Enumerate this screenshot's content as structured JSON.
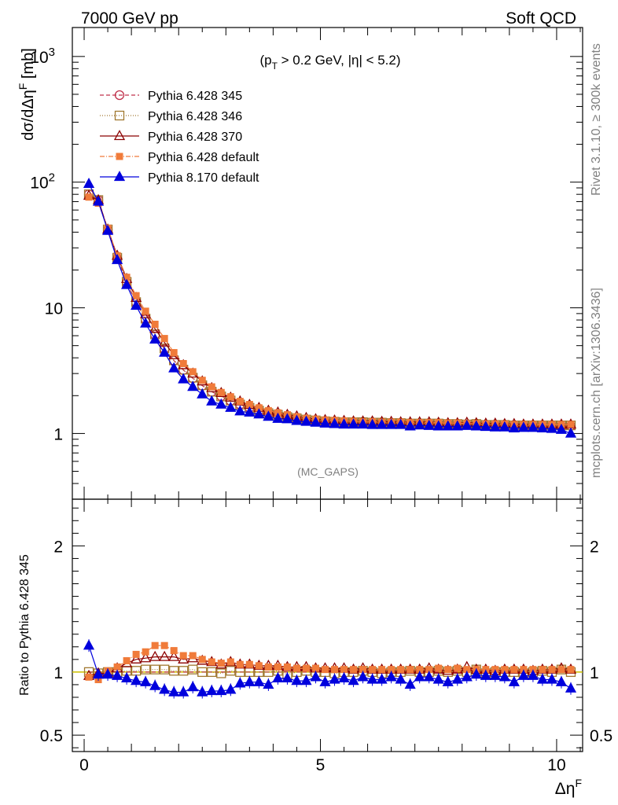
{
  "header": {
    "left": "7000 GeV pp",
    "right": "Soft QCD"
  },
  "side_labels": {
    "rivet": "Rivet 3.1.10, ≥ 300k events",
    "mcplots": "mcplots.cern.ch [arXiv:1306.3436]"
  },
  "chart_data": [
    {
      "type": "line",
      "panel": "main",
      "annotation": "(p_T > 0.2 GeV, |η| < 5.2)",
      "annotation_parts": {
        "open": "(p",
        "sub": "T",
        "rest": " > 0.2 GeV, |η| < 5.2)"
      },
      "watermark": "(MC_GAPS)",
      "ylabel": "dσ/dΔη^F [mb]",
      "ylabel_parts": {
        "base": "dσ/dΔη",
        "sup": "F",
        "tail": " [mb]"
      },
      "y_scale": "log",
      "ylim": [
        0.3,
        1700
      ],
      "xlim": [
        -0.25,
        10.55
      ],
      "y_tick_labels": [
        {
          "value": 1,
          "label": "1"
        },
        {
          "value": 10,
          "label": "10"
        },
        {
          "value": 100,
          "label": "10",
          "sup": "2"
        },
        {
          "value": 1000,
          "label": "10",
          "sup": "3"
        }
      ],
      "legend_position": "top-left",
      "x": [
        0.1,
        0.3,
        0.5,
        0.7,
        0.9,
        1.1,
        1.3,
        1.5,
        1.7,
        1.9,
        2.1,
        2.3,
        2.5,
        2.7,
        2.9,
        3.1,
        3.3,
        3.5,
        3.7,
        3.9,
        4.1,
        4.3,
        4.5,
        4.7,
        4.9,
        5.1,
        5.3,
        5.5,
        5.7,
        5.9,
        6.1,
        6.3,
        6.5,
        6.7,
        6.9,
        7.1,
        7.3,
        7.5,
        7.7,
        7.9,
        8.1,
        8.3,
        8.5,
        8.7,
        8.9,
        9.1,
        9.3,
        9.5,
        9.7,
        9.9,
        10.1,
        10.3
      ],
      "series": [
        {
          "name": "Pythia 6.428 345",
          "color": "#c0304a",
          "marker": "circle-open",
          "dash": "5,3",
          "values": [
            80,
            72,
            42,
            25,
            16,
            11,
            8.1,
            6.1,
            4.7,
            3.8,
            3.2,
            2.75,
            2.4,
            2.15,
            1.98,
            1.82,
            1.7,
            1.6,
            1.52,
            1.45,
            1.4,
            1.35,
            1.32,
            1.28,
            1.26,
            1.25,
            1.24,
            1.23,
            1.23,
            1.22,
            1.22,
            1.22,
            1.21,
            1.21,
            1.2,
            1.2,
            1.2,
            1.19,
            1.19,
            1.18,
            1.18,
            1.18,
            1.17,
            1.17,
            1.17,
            1.16,
            1.16,
            1.16,
            1.16,
            1.16,
            1.15,
            1.15
          ]
        },
        {
          "name": "Pythia 6.428 346",
          "color": "#a07830",
          "marker": "square-open",
          "dash": "1,2",
          "values": [
            80,
            72,
            42,
            25,
            16.1,
            11.1,
            8.2,
            6.15,
            4.75,
            3.82,
            3.22,
            2.78,
            2.42,
            2.15,
            1.97,
            1.83,
            1.7,
            1.6,
            1.52,
            1.45,
            1.41,
            1.35,
            1.32,
            1.29,
            1.27,
            1.25,
            1.24,
            1.23,
            1.23,
            1.23,
            1.22,
            1.22,
            1.21,
            1.21,
            1.2,
            1.2,
            1.2,
            1.2,
            1.19,
            1.19,
            1.18,
            1.19,
            1.17,
            1.17,
            1.17,
            1.16,
            1.16,
            1.16,
            1.16,
            1.16,
            1.16,
            1.16
          ]
        },
        {
          "name": "Pythia 6.428 370",
          "color": "#8b0000",
          "marker": "triangle-open",
          "dash": "",
          "values": [
            78,
            72,
            42,
            26,
            17,
            12,
            8.9,
            6.8,
            5.3,
            4.2,
            3.5,
            3,
            2.6,
            2.3,
            2.1,
            1.93,
            1.8,
            1.69,
            1.6,
            1.52,
            1.47,
            1.41,
            1.37,
            1.33,
            1.3,
            1.28,
            1.27,
            1.26,
            1.25,
            1.25,
            1.25,
            1.24,
            1.24,
            1.23,
            1.23,
            1.23,
            1.23,
            1.22,
            1.21,
            1.21,
            1.22,
            1.21,
            1.2,
            1.2,
            1.19,
            1.19,
            1.18,
            1.18,
            1.18,
            1.18,
            1.18,
            1.18
          ]
        },
        {
          "name": "Pythia 6.428 default",
          "color": "#f07b3a",
          "marker": "square-filled",
          "dash": "6,2,1,2",
          "values": [
            76,
            68,
            43,
            26,
            17.5,
            12.5,
            9.4,
            7.4,
            5.7,
            4.4,
            3.6,
            3.1,
            2.65,
            2.35,
            2.12,
            1.96,
            1.8,
            1.7,
            1.6,
            1.52,
            1.46,
            1.41,
            1.36,
            1.32,
            1.3,
            1.28,
            1.27,
            1.26,
            1.25,
            1.24,
            1.24,
            1.23,
            1.23,
            1.23,
            1.22,
            1.22,
            1.22,
            1.22,
            1.21,
            1.21,
            1.2,
            1.2,
            1.19,
            1.19,
            1.19,
            1.18,
            1.18,
            1.18,
            1.18,
            1.18,
            1.18,
            1.18
          ]
        },
        {
          "name": "Pythia 8.170 default",
          "color": "#0000dd",
          "marker": "triangle-filled",
          "dash": "",
          "values": [
            97,
            70,
            41,
            24,
            15.2,
            10.4,
            7.5,
            5.6,
            4.4,
            3.3,
            2.7,
            2.35,
            2.05,
            1.8,
            1.7,
            1.6,
            1.5,
            1.47,
            1.42,
            1.36,
            1.31,
            1.3,
            1.26,
            1.24,
            1.22,
            1.2,
            1.19,
            1.18,
            1.18,
            1.18,
            1.17,
            1.17,
            1.17,
            1.17,
            1.14,
            1.16,
            1.15,
            1.14,
            1.14,
            1.14,
            1.15,
            1.14,
            1.13,
            1.12,
            1.12,
            1.1,
            1.11,
            1.11,
            1.1,
            1.09,
            1.07,
            1.0
          ]
        }
      ]
    },
    {
      "type": "line",
      "panel": "ratio",
      "ylabel": "Ratio to Pythia 6.428 345",
      "xlabel": "Δη^F",
      "xlabel_parts": {
        "base": "Δη",
        "sup": "F"
      },
      "ylim": [
        0.37,
        2.37
      ],
      "xlim": [
        -0.25,
        10.55
      ],
      "x_tick_labels": [
        {
          "value": 0,
          "label": "0"
        },
        {
          "value": 5,
          "label": "5"
        },
        {
          "value": 10,
          "label": "10"
        }
      ],
      "y_tick_labels": [
        {
          "value": 0.5,
          "label": "0.5"
        },
        {
          "value": 1,
          "label": "1"
        },
        {
          "value": 2,
          "label": "2"
        }
      ],
      "reference_line": 1,
      "x": [
        0.1,
        0.3,
        0.5,
        0.7,
        0.9,
        1.1,
        1.3,
        1.5,
        1.7,
        1.9,
        2.1,
        2.3,
        2.5,
        2.7,
        2.9,
        3.1,
        3.3,
        3.5,
        3.7,
        3.9,
        4.1,
        4.3,
        4.5,
        4.7,
        4.9,
        5.1,
        5.3,
        5.5,
        5.7,
        5.9,
        6.1,
        6.3,
        6.5,
        6.7,
        6.9,
        7.1,
        7.3,
        7.5,
        7.7,
        7.9,
        8.1,
        8.3,
        8.5,
        8.7,
        8.9,
        9.1,
        9.3,
        9.5,
        9.7,
        9.9,
        10.1,
        10.3
      ],
      "series": [
        {
          "name": "Pythia 6.428 345",
          "color": "#c0304a",
          "marker": "circle-open",
          "dash": "5,3",
          "values": [
            1,
            1,
            1,
            1,
            1,
            1,
            1,
            1,
            1,
            1,
            1,
            1,
            1,
            1,
            1,
            1,
            1,
            1,
            1,
            1,
            1,
            1,
            1,
            1,
            1,
            1,
            1,
            1,
            1,
            1,
            1,
            1,
            1,
            1,
            1,
            1,
            1,
            1,
            1,
            1,
            1,
            1,
            1,
            1,
            1,
            1,
            1,
            1,
            1,
            1,
            1,
            1
          ]
        },
        {
          "name": "Pythia 6.428 346",
          "color": "#a07830",
          "marker": "square-open",
          "dash": "1,2",
          "values": [
            1.0,
            0.99,
            1.0,
            1.0,
            1.01,
            1.01,
            1.02,
            1.02,
            1.02,
            1.01,
            1.01,
            1.02,
            1.0,
            1.0,
            0.99,
            1.01,
            1.0,
            1.0,
            1.0,
            1.0,
            1.01,
            0.98,
            1.0,
            1.01,
            1.0,
            1.0,
            0.99,
            1.0,
            1.0,
            1.01,
            1.0,
            0.99,
            1.0,
            1.0,
            1.01,
            1.0,
            1.0,
            1.01,
            1.0,
            1.01,
            1.0,
            1.02,
            0.99,
            1.0,
            1.0,
            1.0,
            0.99,
            1.0,
            1.01,
            1.0,
            1.02,
            1.0
          ]
        },
        {
          "name": "Pythia 6.428 370",
          "color": "#8b0000",
          "marker": "triangle-open",
          "dash": "",
          "values": [
            0.97,
            0.99,
            0.99,
            1.03,
            1.07,
            1.1,
            1.11,
            1.12,
            1.12,
            1.12,
            1.1,
            1.11,
            1.09,
            1.08,
            1.06,
            1.08,
            1.06,
            1.06,
            1.05,
            1.05,
            1.05,
            1.04,
            1.04,
            1.04,
            1.03,
            1.03,
            1.03,
            1.03,
            1.02,
            1.03,
            1.02,
            1.02,
            1.02,
            1.02,
            1.02,
            1.02,
            1.03,
            1.02,
            1.01,
            1.02,
            1.04,
            1.02,
            1.02,
            1.01,
            1.02,
            1.02,
            1.02,
            1.01,
            1.02,
            1.02,
            1.03,
            1.02
          ]
        },
        {
          "name": "Pythia 6.428 default",
          "color": "#f07b3a",
          "marker": "square-filled",
          "dash": "6,2,1,2",
          "values": [
            0.96,
            0.94,
            1.01,
            1.04,
            1.09,
            1.14,
            1.16,
            1.21,
            1.21,
            1.17,
            1.13,
            1.13,
            1.1,
            1.08,
            1.07,
            1.08,
            1.06,
            1.06,
            1.05,
            1.04,
            1.04,
            1.04,
            1.03,
            1.03,
            1.03,
            1.02,
            1.02,
            1.02,
            1.02,
            1.02,
            1.02,
            1.02,
            1.02,
            1.02,
            1.02,
            1.02,
            1.02,
            1.03,
            1.02,
            1.03,
            1.02,
            1.02,
            1.02,
            1.02,
            1.02,
            1.02,
            1.02,
            1.02,
            1.02,
            1.02,
            1.02,
            1.02
          ]
        },
        {
          "name": "Pythia 8.170 default",
          "color": "#0000dd",
          "marker": "triangle-filled",
          "dash": "",
          "values": [
            1.21,
            0.98,
            0.98,
            0.97,
            0.95,
            0.93,
            0.92,
            0.89,
            0.86,
            0.84,
            0.84,
            0.88,
            0.84,
            0.85,
            0.85,
            0.86,
            0.91,
            0.92,
            0.92,
            0.9,
            0.95,
            0.95,
            0.93,
            0.93,
            0.96,
            0.92,
            0.94,
            0.95,
            0.93,
            0.96,
            0.94,
            0.94,
            0.96,
            0.94,
            0.9,
            0.96,
            0.96,
            0.94,
            0.92,
            0.94,
            0.96,
            0.98,
            0.97,
            0.97,
            0.96,
            0.92,
            0.97,
            0.97,
            0.94,
            0.94,
            0.92,
            0.87
          ]
        }
      ]
    }
  ]
}
